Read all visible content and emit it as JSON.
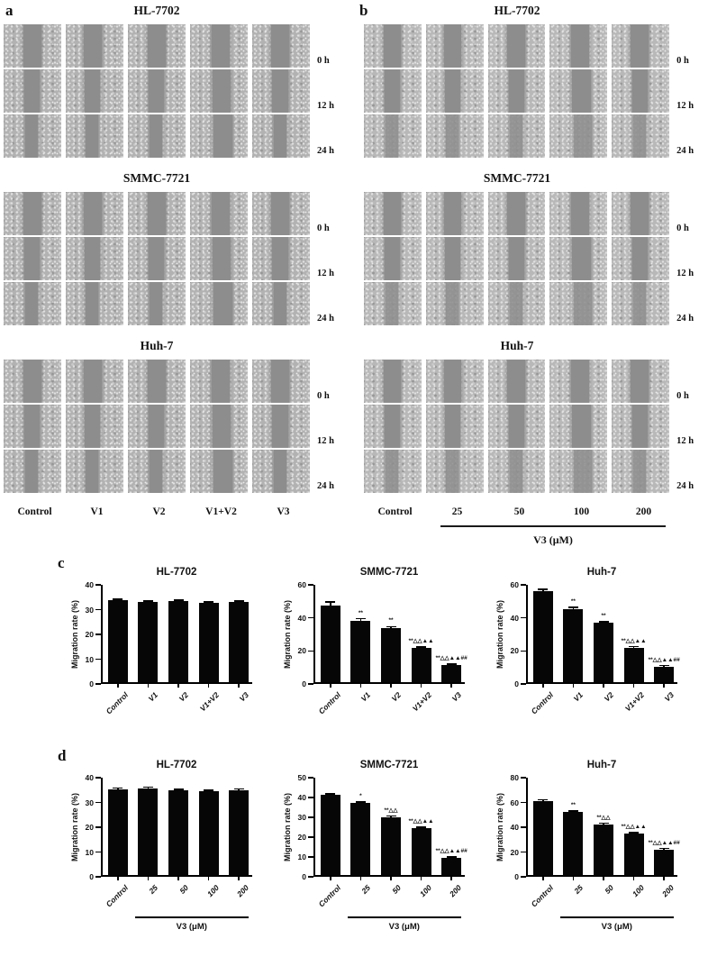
{
  "panels": {
    "a": {
      "letter": "a",
      "sections": [
        "HL-7702",
        "SMMC-7721",
        "Huh-7"
      ],
      "time_labels": [
        "0 h",
        "12 h",
        "24 h"
      ],
      "col_labels": [
        "Control",
        "V1",
        "V2",
        "V1+V2",
        "V3"
      ],
      "dose_axis_label": null
    },
    "b": {
      "letter": "b",
      "sections": [
        "HL-7702",
        "SMMC-7721",
        "Huh-7"
      ],
      "time_labels": [
        "0 h",
        "12 h",
        "24 h"
      ],
      "col_labels": [
        "Control",
        "25",
        "50",
        "100",
        "200"
      ],
      "dose_axis_label": "V3 (μM)"
    },
    "c": {
      "letter": "c"
    },
    "d": {
      "letter": "d"
    }
  },
  "chart_data": [
    {
      "panel": "c",
      "type": "bar",
      "title": "HL-7702",
      "ylabel": "Migration rate (%)",
      "ylim": [
        0,
        40
      ],
      "yticks": [
        0,
        10,
        20,
        30,
        40
      ],
      "categories": [
        "Control",
        "V1",
        "V2",
        "V1+V2",
        "V3"
      ],
      "values": [
        33.1,
        32.4,
        32.6,
        31.9,
        32.3
      ],
      "errors": [
        0.7,
        0.5,
        0.6,
        0.6,
        0.6
      ],
      "annotations": [
        "",
        "",
        "",
        "",
        ""
      ],
      "dose_group_label": null
    },
    {
      "panel": "c",
      "type": "bar",
      "title": "SMMC-7721",
      "ylabel": "Migration rate (%)",
      "ylim": [
        0,
        60
      ],
      "yticks": [
        0,
        20,
        40,
        60
      ],
      "categories": [
        "Control",
        "V1",
        "V2",
        "V1+V2",
        "V3"
      ],
      "values": [
        46.5,
        37.2,
        32.5,
        20.5,
        10.2
      ],
      "errors": [
        2.5,
        1.8,
        1.6,
        1.0,
        0.8
      ],
      "annotations": [
        "",
        "**",
        "**",
        "**△△▲▲",
        "**△△▲▲##"
      ],
      "dose_group_label": null
    },
    {
      "panel": "c",
      "type": "bar",
      "title": "Huh-7",
      "ylabel": "Migration rate (%)",
      "ylim": [
        0,
        60
      ],
      "yticks": [
        0,
        20,
        40,
        60
      ],
      "categories": [
        "Control",
        "V1",
        "V2",
        "V1+V2",
        "V3"
      ],
      "values": [
        55.0,
        44.0,
        36.0,
        20.5,
        9.5
      ],
      "errors": [
        1.5,
        1.6,
        1.0,
        1.5,
        1.0
      ],
      "annotations": [
        "",
        "**",
        "**",
        "**△△▲▲",
        "**△△▲▲##"
      ],
      "dose_group_label": null
    },
    {
      "panel": "d",
      "type": "bar",
      "title": "HL-7702",
      "ylabel": "Migration rate (%)",
      "ylim": [
        0,
        40
      ],
      "yticks": [
        0,
        10,
        20,
        30,
        40
      ],
      "categories": [
        "Control",
        "25",
        "50",
        "100",
        "200"
      ],
      "values": [
        34.6,
        35.0,
        34.2,
        33.8,
        34.3
      ],
      "errors": [
        0.5,
        0.5,
        0.7,
        0.5,
        0.5
      ],
      "annotations": [
        "",
        "",
        "",
        "",
        ""
      ],
      "dose_group_label": "V3 (μM)"
    },
    {
      "panel": "d",
      "type": "bar",
      "title": "SMMC-7721",
      "ylabel": "Migration rate (%)",
      "ylim": [
        0,
        50
      ],
      "yticks": [
        0,
        10,
        20,
        30,
        40,
        50
      ],
      "categories": [
        "Control",
        "25",
        "50",
        "100",
        "200"
      ],
      "values": [
        40.3,
        36.2,
        29.2,
        23.5,
        8.5
      ],
      "errors": [
        0.6,
        1.0,
        0.7,
        0.6,
        0.5
      ],
      "annotations": [
        "",
        "*",
        "**△△",
        "**△△▲▲",
        "**△△▲▲##"
      ],
      "dose_group_label": "V3 (μM)"
    },
    {
      "panel": "d",
      "type": "bar",
      "title": "Huh-7",
      "ylabel": "Migration rate (%)",
      "ylim": [
        0,
        80
      ],
      "yticks": [
        0,
        20,
        40,
        60,
        80
      ],
      "categories": [
        "Control",
        "25",
        "50",
        "100",
        "200"
      ],
      "values": [
        59.8,
        50.8,
        41.0,
        33.3,
        20.5
      ],
      "errors": [
        1.0,
        1.0,
        1.0,
        1.0,
        1.0
      ],
      "annotations": [
        "",
        "**",
        "**△△",
        "**△△▲▲",
        "**△△▲▲##"
      ],
      "dose_group_label": "V3 (μM)"
    }
  ]
}
